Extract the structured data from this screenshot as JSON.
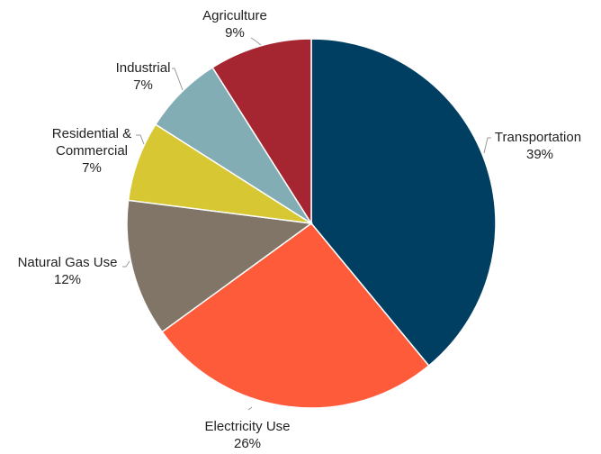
{
  "chart_data": {
    "type": "pie",
    "title": "",
    "start_angle_deg": 0,
    "direction": "clockwise",
    "slices": [
      {
        "name": "Transportation",
        "value": 39,
        "value_label": "39%",
        "color": "#003f62"
      },
      {
        "name": "Electricity Use",
        "value": 26,
        "value_label": "26%",
        "color": "#fe5b3b"
      },
      {
        "name": "Natural Gas Use",
        "value": 12,
        "value_label": "12%",
        "color": "#807567"
      },
      {
        "name": "Residential & Commercial",
        "value": 7,
        "value_label": "7%",
        "color": "#d7c732"
      },
      {
        "name": "Industrial",
        "value": 7,
        "value_label": "7%",
        "color": "#83adb5"
      },
      {
        "name": "Agriculture",
        "value": 9,
        "value_label": "9%",
        "color": "#a52630"
      }
    ]
  }
}
